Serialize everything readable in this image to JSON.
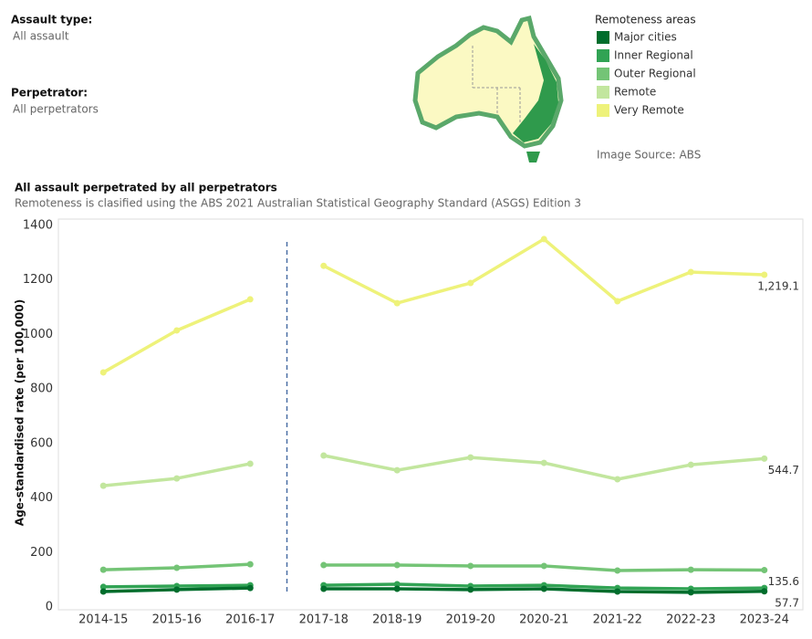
{
  "filters": [
    {
      "label": "Assault type:",
      "value": "All assault"
    },
    {
      "label": "Perpetrator:",
      "value": "All perpetrators"
    }
  ],
  "map": {
    "legend_title": "Remoteness areas",
    "source": "Image Source: ABS"
  },
  "chart_data": {
    "type": "line",
    "title": "All assault perpetrated by all perpetrators",
    "subtitle": "Remoteness is clasified using the ABS 2021 Australian Statistical Geography Standard (ASGS) Edition 3",
    "y_label": "Age-standardised rate (per 100,000)",
    "categories": [
      "2014-15",
      "2015-16",
      "2016-17",
      "2017-18",
      "2018-19",
      "2019-20",
      "2020-21",
      "2021-22",
      "2022-23",
      "2023-24"
    ],
    "break_before": 3,
    "ylim": [
      -20,
      1400
    ],
    "yticks": [
      0,
      200,
      400,
      600,
      800,
      1000,
      1200,
      1400
    ],
    "grid": false,
    "series": [
      {
        "name": "Major cities",
        "color": "#006d2c",
        "values": [
          57,
          64,
          70,
          67,
          67,
          64,
          67,
          57,
          54,
          57.7
        ],
        "value_labels": [
          null,
          null,
          null,
          null,
          null,
          null,
          null,
          null,
          null,
          "57.7"
        ]
      },
      {
        "name": "Inner Regional",
        "color": "#31a354",
        "values": [
          74,
          77,
          80,
          80,
          84,
          77,
          80,
          70,
          67,
          70
        ]
      },
      {
        "name": "Outer Regional",
        "color": "#74c476",
        "values": [
          137,
          144,
          157,
          154,
          154,
          151,
          151,
          134,
          137,
          135.6
        ],
        "value_labels": [
          null,
          null,
          null,
          null,
          null,
          null,
          null,
          null,
          null,
          "135.6"
        ]
      },
      {
        "name": "Remote",
        "color": "#c2e69e",
        "values": [
          445,
          472,
          526,
          556,
          502,
          549,
          529,
          469,
          522,
          544.7
        ],
        "value_labels": [
          null,
          null,
          null,
          null,
          null,
          null,
          null,
          null,
          null,
          "544.7"
        ]
      },
      {
        "name": "Very Remote",
        "color": "#eef27a",
        "values": [
          861,
          1015,
          1129,
          1252,
          1115,
          1189,
          1350,
          1122,
          1229,
          1219.1
        ],
        "value_labels": [
          null,
          null,
          null,
          null,
          null,
          null,
          null,
          null,
          null,
          "1,219.1"
        ]
      }
    ]
  }
}
